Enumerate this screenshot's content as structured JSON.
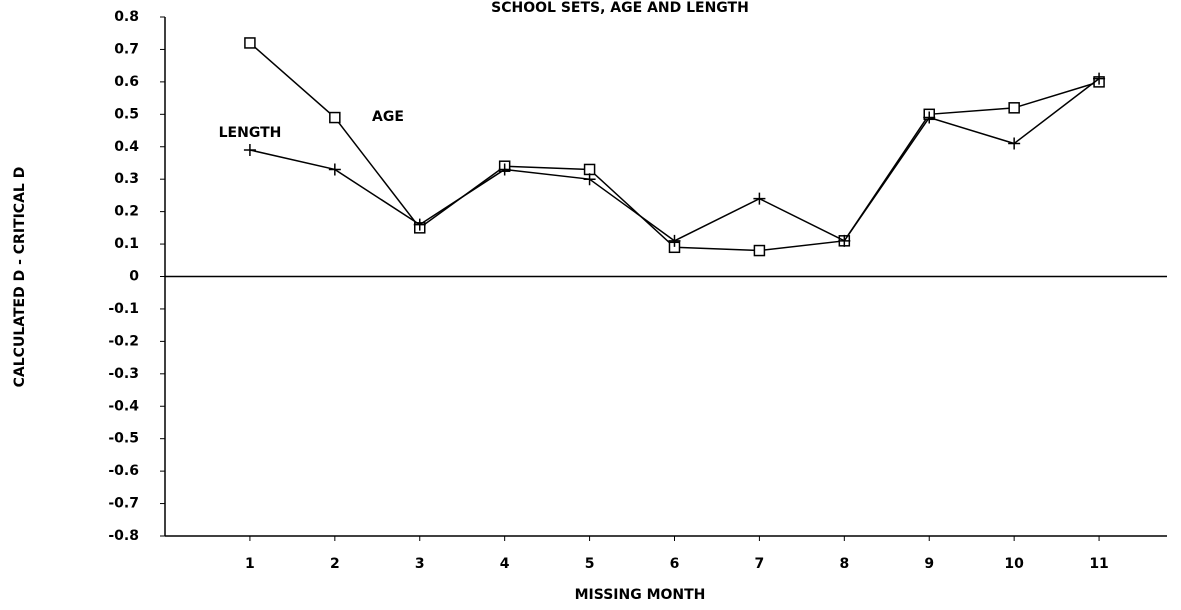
{
  "chart_data": {
    "type": "line",
    "title": "SCHOOL SETS, AGE AND LENGTH",
    "xlabel": "MISSING MONTH",
    "ylabel": "CALCULATED D - CRITICAL D",
    "x": [
      1,
      2,
      3,
      4,
      5,
      6,
      7,
      8,
      9,
      10,
      11
    ],
    "xlim": [
      0,
      11.8
    ],
    "xticks": [
      1,
      2,
      3,
      4,
      5,
      6,
      7,
      8,
      9,
      10,
      11
    ],
    "ylim": [
      -0.8,
      0.8
    ],
    "yticks": [
      -0.8,
      -0.7,
      -0.6,
      -0.5,
      -0.4,
      -0.3,
      -0.2,
      -0.1,
      0,
      0.1,
      0.2,
      0.3,
      0.4,
      0.5,
      0.6,
      0.7,
      0.8
    ],
    "series": [
      {
        "name": "AGE",
        "color": "#000000",
        "marker": "square",
        "values": [
          0.72,
          0.49,
          0.15,
          0.34,
          0.33,
          0.09,
          0.08,
          0.11,
          0.5,
          0.52,
          0.6
        ]
      },
      {
        "name": "LENGTH",
        "color": "#000000",
        "marker": "plus",
        "values": [
          0.39,
          0.33,
          0.16,
          0.33,
          0.3,
          0.11,
          0.24,
          0.11,
          0.49,
          0.41,
          0.61
        ]
      }
    ]
  }
}
